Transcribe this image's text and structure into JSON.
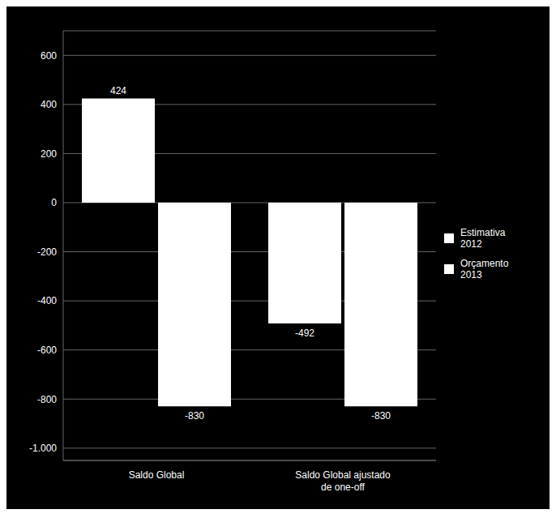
{
  "chart_data": {
    "type": "bar",
    "categories": [
      "Saldo Global",
      "Saldo Global ajustado\nde one-off"
    ],
    "series": [
      {
        "name": "Estimativa\n2012",
        "color": "#ffffff",
        "values": [
          424,
          -492
        ]
      },
      {
        "name": "Orçamento\n2013",
        "color": "#ffffff",
        "values": [
          -830,
          -830
        ]
      }
    ],
    "ylim": [
      -1050,
      700
    ],
    "yticks": [
      {
        "value": -1000,
        "label": "-1.000"
      },
      -800,
      -600,
      -400,
      -200,
      0,
      200,
      400,
      600
    ],
    "grid": true,
    "legend": "right",
    "data_labels": true
  }
}
